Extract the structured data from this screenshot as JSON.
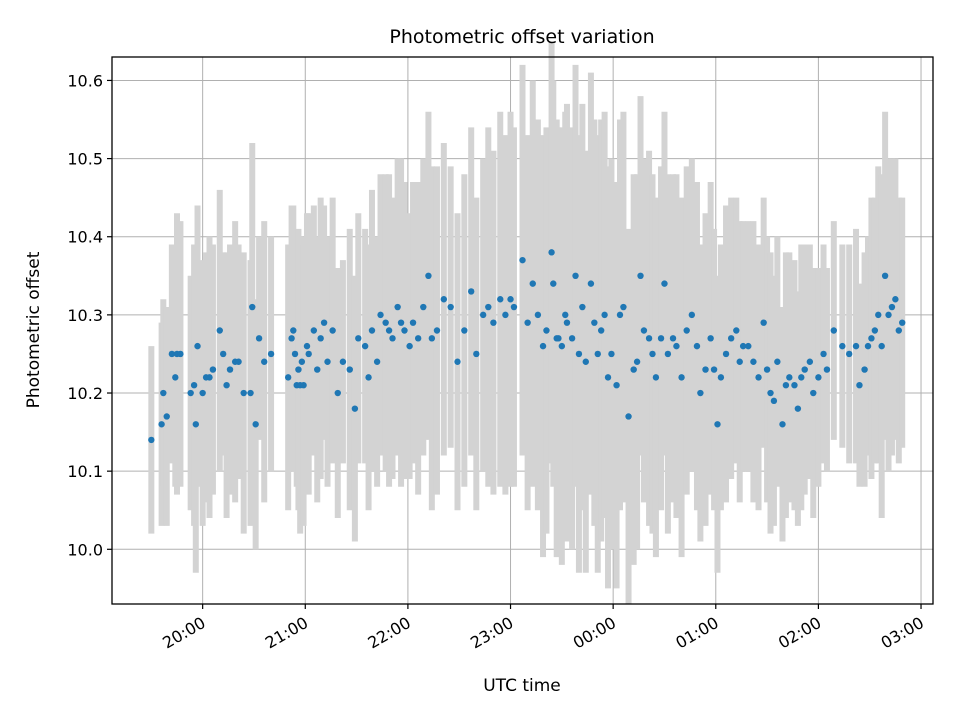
{
  "chart_data": {
    "type": "scatter",
    "title": "Photometric offset variation",
    "xlabel": "UTC time",
    "ylabel": "Photometric offset",
    "x_axis_type": "time",
    "xlim": [
      "19:07",
      "03:07"
    ],
    "ylim": [
      9.93,
      10.63
    ],
    "x_ticks": [
      "20:00",
      "21:00",
      "22:00",
      "23:00",
      "00:00",
      "01:00",
      "02:00",
      "03:00"
    ],
    "y_ticks": [
      10.0,
      10.1,
      10.2,
      10.3,
      10.4,
      10.5,
      10.6
    ],
    "y_tick_labels": [
      "10.0",
      "10.1",
      "10.2",
      "10.3",
      "10.4",
      "10.5",
      "10.6"
    ],
    "grid": true,
    "legend": "none",
    "colors": {
      "marker": "#1f77b4",
      "errorbar": "#d3d3d3",
      "grid": "#b0b0b0",
      "axes": "#000000"
    },
    "series": [
      {
        "x_time": [
          "19:30",
          "19:36",
          "19:37",
          "19:39",
          "19:42",
          "19:44",
          "19:45",
          "19:47",
          "19:53",
          "19:55",
          "19:56",
          "19:57",
          "20:00",
          "20:02",
          "20:04",
          "20:06",
          "20:10",
          "20:12",
          "20:14",
          "20:16",
          "20:19",
          "20:21",
          "20:24",
          "20:28",
          "20:29",
          "20:31",
          "20:33",
          "20:36",
          "20:40",
          "20:50",
          "20:52",
          "20:53",
          "20:54",
          "20:55",
          "20:56",
          "20:57",
          "20:58",
          "20:59",
          "21:01",
          "21:02",
          "21:05",
          "21:07",
          "21:09",
          "21:11",
          "21:13",
          "21:16",
          "21:19",
          "21:22",
          "21:26",
          "21:29",
          "21:31",
          "21:35",
          "21:37",
          "21:39",
          "21:42",
          "21:44",
          "21:47",
          "21:49",
          "21:51",
          "21:54",
          "21:56",
          "21:58",
          "22:01",
          "22:03",
          "22:06",
          "22:09",
          "22:12",
          "22:14",
          "22:17",
          "22:21",
          "22:25",
          "22:29",
          "22:33",
          "22:37",
          "22:40",
          "22:44",
          "22:47",
          "22:50",
          "22:54",
          "22:57",
          "23:00",
          "23:02",
          "23:07",
          "23:10",
          "23:13",
          "23:16",
          "23:19",
          "23:21",
          "23:24",
          "23:25",
          "23:27",
          "23:28",
          "23:30",
          "23:32",
          "23:33",
          "23:36",
          "23:38",
          "23:40",
          "23:42",
          "23:44",
          "23:47",
          "23:49",
          "23:51",
          "23:53",
          "23:55",
          "23:57",
          "23:59",
          "00:02",
          "00:04",
          "00:06",
          "00:09",
          "00:12",
          "00:14",
          "00:16",
          "00:18",
          "00:21",
          "00:23",
          "00:25",
          "00:28",
          "00:30",
          "00:32",
          "00:35",
          "00:37",
          "00:40",
          "00:43",
          "00:46",
          "00:49",
          "00:51",
          "00:54",
          "00:57",
          "00:59",
          "01:01",
          "01:03",
          "01:06",
          "01:09",
          "01:12",
          "01:14",
          "01:16",
          "01:19",
          "01:22",
          "01:25",
          "01:28",
          "01:30",
          "01:32",
          "01:34",
          "01:36",
          "01:39",
          "01:41",
          "01:43",
          "01:46",
          "01:48",
          "01:50",
          "01:52",
          "01:55",
          "01:57",
          "02:00",
          "02:03",
          "02:05",
          "02:09",
          "02:14",
          "02:18",
          "02:22",
          "02:24",
          "02:27",
          "02:29",
          "02:31",
          "02:33",
          "02:35",
          "02:37",
          "02:39",
          "02:41",
          "02:43",
          "02:45",
          "02:47",
          "02:49"
        ],
        "y": [
          10.14,
          10.16,
          10.2,
          10.17,
          10.25,
          10.22,
          10.25,
          10.25,
          10.2,
          10.21,
          10.16,
          10.26,
          10.2,
          10.22,
          10.22,
          10.23,
          10.28,
          10.25,
          10.21,
          10.23,
          10.24,
          10.24,
          10.2,
          10.2,
          10.31,
          10.16,
          10.27,
          10.24,
          10.25,
          10.22,
          10.27,
          10.28,
          10.25,
          10.21,
          10.23,
          10.21,
          10.24,
          10.21,
          10.26,
          10.25,
          10.28,
          10.23,
          10.27,
          10.29,
          10.24,
          10.28,
          10.2,
          10.24,
          10.23,
          10.18,
          10.27,
          10.26,
          10.22,
          10.28,
          10.24,
          10.3,
          10.29,
          10.28,
          10.27,
          10.31,
          10.29,
          10.28,
          10.26,
          10.29,
          10.27,
          10.31,
          10.35,
          10.27,
          10.28,
          10.32,
          10.31,
          10.24,
          10.28,
          10.33,
          10.25,
          10.3,
          10.31,
          10.29,
          10.32,
          10.3,
          10.32,
          10.31,
          10.37,
          10.29,
          10.34,
          10.3,
          10.26,
          10.28,
          10.38,
          10.34,
          10.27,
          10.27,
          10.26,
          10.3,
          10.29,
          10.27,
          10.35,
          10.25,
          10.31,
          10.24,
          10.34,
          10.29,
          10.25,
          10.28,
          10.3,
          10.22,
          10.25,
          10.21,
          10.3,
          10.31,
          10.17,
          10.23,
          10.24,
          10.35,
          10.28,
          10.27,
          10.25,
          10.22,
          10.27,
          10.34,
          10.25,
          10.27,
          10.26,
          10.22,
          10.28,
          10.3,
          10.26,
          10.2,
          10.23,
          10.27,
          10.23,
          10.16,
          10.22,
          10.25,
          10.27,
          10.28,
          10.24,
          10.26,
          10.26,
          10.24,
          10.22,
          10.29,
          10.23,
          10.2,
          10.19,
          10.24,
          10.16,
          10.21,
          10.22,
          10.21,
          10.18,
          10.22,
          10.23,
          10.24,
          10.2,
          10.22,
          10.25,
          10.23,
          10.28,
          10.26,
          10.25,
          10.26,
          10.21,
          10.23,
          10.26,
          10.27,
          10.28,
          10.3,
          10.26,
          10.35,
          10.3,
          10.31,
          10.32,
          10.28,
          10.29
        ],
        "yerr": [
          0.12,
          0.13,
          0.12,
          0.14,
          0.14,
          0.14,
          0.18,
          0.17,
          0.15,
          0.18,
          0.19,
          0.18,
          0.17,
          0.16,
          0.18,
          0.16,
          0.18,
          0.13,
          0.17,
          0.16,
          0.18,
          0.15,
          0.18,
          0.17,
          0.21,
          0.16,
          0.13,
          0.18,
          0.15,
          0.17,
          0.17,
          0.16,
          0.15,
          0.13,
          0.18,
          0.19,
          0.16,
          0.18,
          0.17,
          0.18,
          0.16,
          0.17,
          0.18,
          0.15,
          0.16,
          0.17,
          0.16,
          0.13,
          0.18,
          0.17,
          0.16,
          0.15,
          0.17,
          0.18,
          0.16,
          0.18,
          0.19,
          0.2,
          0.18,
          0.19,
          0.21,
          0.19,
          0.17,
          0.18,
          0.2,
          0.19,
          0.21,
          0.22,
          0.21,
          0.2,
          0.18,
          0.19,
          0.2,
          0.21,
          0.2,
          0.2,
          0.23,
          0.22,
          0.24,
          0.23,
          0.24,
          0.23,
          0.25,
          0.24,
          0.26,
          0.25,
          0.27,
          0.26,
          0.27,
          0.26,
          0.28,
          0.27,
          0.28,
          0.26,
          0.28,
          0.27,
          0.27,
          0.28,
          0.26,
          0.27,
          0.27,
          0.26,
          0.28,
          0.27,
          0.26,
          0.27,
          0.25,
          0.26,
          0.25,
          0.25,
          0.24,
          0.25,
          0.24,
          0.23,
          0.22,
          0.24,
          0.23,
          0.23,
          0.22,
          0.22,
          0.23,
          0.21,
          0.22,
          0.23,
          0.21,
          0.2,
          0.21,
          0.19,
          0.2,
          0.2,
          0.18,
          0.19,
          0.17,
          0.19,
          0.18,
          0.17,
          0.18,
          0.16,
          0.16,
          0.18,
          0.17,
          0.16,
          0.17,
          0.18,
          0.16,
          0.16,
          0.15,
          0.17,
          0.16,
          0.16,
          0.15,
          0.17,
          0.16,
          0.15,
          0.16,
          0.14,
          0.14,
          0.13,
          0.14,
          0.13,
          0.14,
          0.15,
          0.13,
          0.15,
          0.14,
          0.18,
          0.17,
          0.19,
          0.22,
          0.21,
          0.2,
          0.19,
          0.18,
          0.17,
          0.16
        ]
      }
    ]
  }
}
